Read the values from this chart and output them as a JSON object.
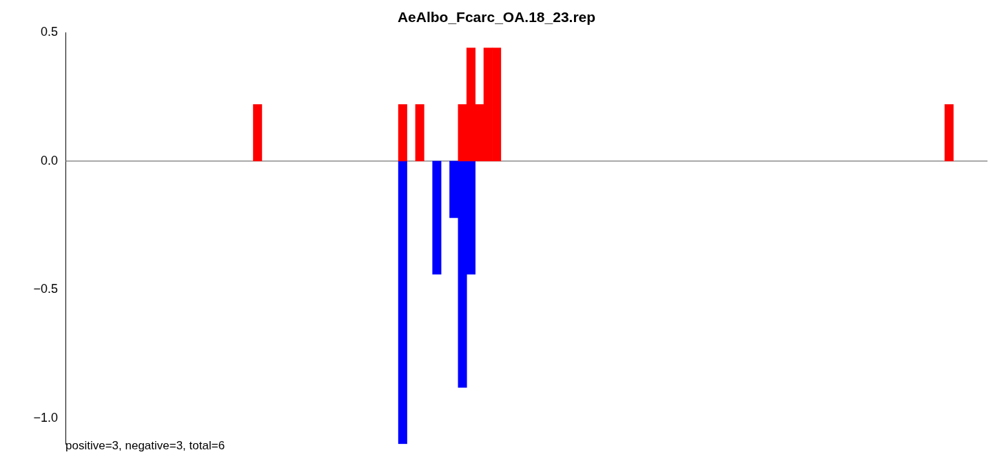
{
  "chart_data": {
    "type": "bar",
    "title": "AeAlbo_Fcarc_OA.18_23.rep",
    "categories": [
      null,
      null,
      null,
      null,
      null,
      null,
      null,
      null,
      null,
      null,
      null,
      null,
      null,
      null,
      null,
      null,
      null,
      null,
      null,
      null,
      null,
      null,
      null,
      null,
      null,
      null,
      null,
      null,
      null,
      null,
      null,
      null,
      null,
      null,
      null,
      null,
      null,
      null,
      null,
      null,
      null,
      null,
      null,
      null,
      null,
      null,
      null,
      null,
      null,
      null,
      null,
      null,
      null,
      null,
      null,
      null,
      null,
      null,
      null,
      null,
      null,
      null,
      null,
      null,
      null,
      null,
      null,
      null,
      null,
      null,
      null,
      null,
      null,
      null,
      null,
      null,
      null,
      null,
      null,
      null,
      null,
      null,
      null,
      null,
      null,
      null,
      null,
      null,
      null,
      null,
      null,
      null,
      null,
      null,
      null,
      null,
      null,
      null,
      null,
      null,
      null,
      null,
      null,
      null,
      null,
      null,
      null,
      null
    ],
    "stacked": true,
    "series": [
      {
        "color": "#ff0000",
        "values": [
          null,
          null,
          null,
          null,
          null,
          null,
          null,
          null,
          null,
          null,
          null,
          null,
          null,
          null,
          null,
          null,
          null,
          null,
          null,
          null,
          null,
          null,
          0.22,
          null,
          null,
          null,
          null,
          null,
          null,
          null,
          null,
          null,
          null,
          null,
          null,
          null,
          null,
          null,
          null,
          0.22,
          null,
          0.22,
          null,
          null,
          null,
          null,
          0.22,
          0.44,
          0.22,
          0.44,
          0.44,
          null,
          null,
          null,
          null,
          null,
          null,
          null,
          null,
          null,
          null,
          null,
          null,
          null,
          null,
          null,
          null,
          null,
          null,
          null,
          null,
          null,
          null,
          null,
          null,
          null,
          null,
          null,
          null,
          null,
          null,
          null,
          null,
          null,
          null,
          null,
          null,
          null,
          null,
          null,
          null,
          null,
          null,
          null,
          null,
          null,
          null,
          null,
          null,
          null,
          null,
          null,
          null,
          0.22,
          null,
          null,
          null,
          null
        ]
      },
      {
        "color": "#0000ff",
        "values": [
          null,
          null,
          null,
          null,
          null,
          null,
          null,
          null,
          null,
          null,
          null,
          null,
          null,
          null,
          null,
          null,
          null,
          null,
          null,
          null,
          null,
          null,
          null,
          null,
          null,
          null,
          null,
          null,
          null,
          null,
          null,
          null,
          null,
          null,
          null,
          null,
          null,
          null,
          null,
          -1.1,
          null,
          null,
          null,
          -0.44,
          null,
          -0.22,
          -0.88,
          -0.44,
          null,
          null,
          null,
          null,
          null,
          null,
          null,
          null,
          null,
          null,
          null,
          null,
          null,
          null,
          null,
          null,
          null,
          null,
          null,
          null,
          null,
          null,
          null,
          null,
          null,
          null,
          null,
          null,
          null,
          null,
          null,
          null,
          null,
          null,
          null,
          null,
          null,
          null,
          null,
          null,
          null,
          null,
          null,
          null,
          null,
          null,
          null,
          null,
          null,
          null,
          null,
          null,
          null,
          null,
          null,
          null,
          null,
          null,
          null,
          null
        ]
      }
    ],
    "ylim": [
      -1.1,
      0.5
    ],
    "yticks": [
      {
        "value": -1,
        "label": "−1.0"
      },
      {
        "value": -0.5,
        "label": "−0.5"
      },
      {
        "value": 0,
        "label": "0.0"
      },
      {
        "value": 0.5,
        "label": "0.5"
      }
    ],
    "ref_lines": [
      {
        "axis": "y",
        "value": 0,
        "color": "#555555"
      }
    ],
    "tick_labels": "y",
    "grid": false,
    "legend": false,
    "annotations": [
      "positive=3, negative=3, total=6"
    ]
  }
}
